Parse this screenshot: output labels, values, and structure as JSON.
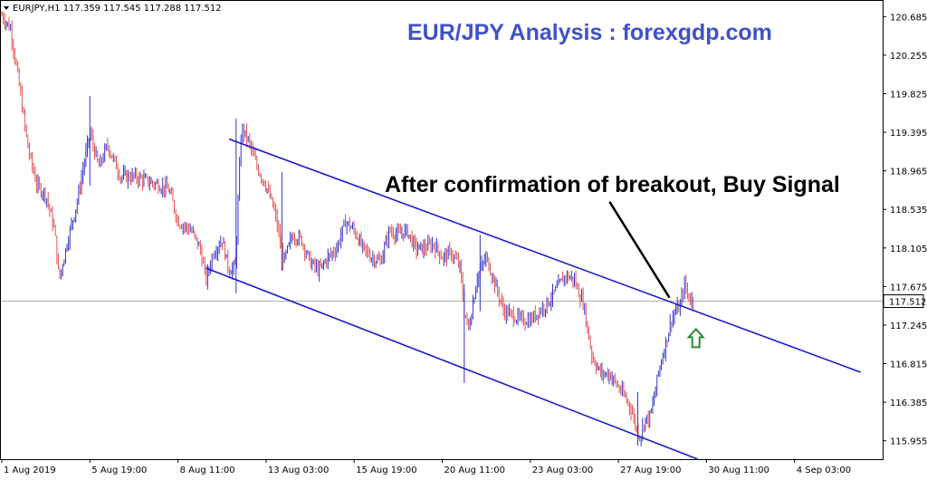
{
  "header": {
    "symbol_info": "EURJPY,H1  117.359 117.545 117.288 117.512"
  },
  "chart_data": {
    "type": "candlestick",
    "title": "EUR/JPY Analysis : forexgdp.com",
    "annotation": "After confirmation of breakout, Buy Signal",
    "ylim": [
      115.75,
      120.85
    ],
    "y_ticks": [
      "120.685",
      "120.255",
      "119.825",
      "119.395",
      "118.965",
      "118.535",
      "118.105",
      "117.675",
      "117.245",
      "116.815",
      "116.385",
      "115.955"
    ],
    "y_tick_values": [
      120.685,
      120.255,
      119.825,
      119.395,
      118.965,
      118.535,
      118.105,
      117.675,
      117.245,
      116.815,
      116.385,
      115.955
    ],
    "x_ticks": [
      "1 Aug 2019",
      "5 Aug 19:00",
      "8 Aug 11:00",
      "13 Aug 03:00",
      "15 Aug 19:00",
      "20 Aug 11:00",
      "23 Aug 03:00",
      "27 Aug 19:00",
      "30 Aug 11:00",
      "4 Sep 03:00"
    ],
    "x_tick_index": [
      0,
      0.1,
      0.2,
      0.3,
      0.4,
      0.5,
      0.6,
      0.7,
      0.8,
      0.9
    ],
    "current_price": "117.512",
    "current_price_value": 117.512,
    "grid": false,
    "colors": {
      "bull": "#3333cc",
      "bear": "#e05050",
      "channel": "#1a1acc",
      "price_line": "#b0b0b0",
      "arrow": "#2e8b2e",
      "title": "#3f51c8"
    },
    "price_path": [
      [
        0.0,
        120.7
      ],
      [
        0.01,
        120.55
      ],
      [
        0.02,
        119.9
      ],
      [
        0.03,
        119.2
      ],
      [
        0.04,
        118.8
      ],
      [
        0.05,
        118.7
      ],
      [
        0.06,
        118.3
      ],
      [
        0.065,
        117.75
      ],
      [
        0.075,
        118.2
      ],
      [
        0.085,
        118.6
      ],
      [
        0.1,
        119.4
      ],
      [
        0.11,
        119.0
      ],
      [
        0.12,
        119.25
      ],
      [
        0.135,
        118.9
      ],
      [
        0.15,
        118.9
      ],
      [
        0.165,
        118.85
      ],
      [
        0.18,
        118.8
      ],
      [
        0.19,
        118.75
      ],
      [
        0.2,
        118.4
      ],
      [
        0.215,
        118.3
      ],
      [
        0.225,
        118.1
      ],
      [
        0.232,
        117.75
      ],
      [
        0.24,
        118.05
      ],
      [
        0.25,
        118.2
      ],
      [
        0.258,
        117.85
      ],
      [
        0.265,
        117.9
      ],
      [
        0.272,
        119.45
      ],
      [
        0.28,
        119.3
      ],
      [
        0.29,
        119.0
      ],
      [
        0.3,
        118.8
      ],
      [
        0.31,
        118.5
      ],
      [
        0.32,
        117.95
      ],
      [
        0.33,
        118.25
      ],
      [
        0.34,
        118.2
      ],
      [
        0.35,
        117.95
      ],
      [
        0.36,
        117.85
      ],
      [
        0.37,
        118.0
      ],
      [
        0.38,
        118.1
      ],
      [
        0.39,
        118.4
      ],
      [
        0.4,
        118.3
      ],
      [
        0.41,
        118.1
      ],
      [
        0.42,
        118.0
      ],
      [
        0.43,
        117.95
      ],
      [
        0.44,
        118.3
      ],
      [
        0.45,
        118.25
      ],
      [
        0.46,
        118.3
      ],
      [
        0.47,
        118.1
      ],
      [
        0.48,
        118.1
      ],
      [
        0.49,
        118.15
      ],
      [
        0.5,
        118.0
      ],
      [
        0.51,
        118.05
      ],
      [
        0.52,
        117.9
      ],
      [
        0.525,
        117.4
      ],
      [
        0.53,
        117.2
      ],
      [
        0.535,
        117.5
      ],
      [
        0.54,
        117.8
      ],
      [
        0.55,
        118.0
      ],
      [
        0.56,
        117.7
      ],
      [
        0.57,
        117.4
      ],
      [
        0.58,
        117.35
      ],
      [
        0.59,
        117.3
      ],
      [
        0.6,
        117.3
      ],
      [
        0.61,
        117.4
      ],
      [
        0.62,
        117.5
      ],
      [
        0.63,
        117.65
      ],
      [
        0.64,
        117.8
      ],
      [
        0.65,
        117.75
      ],
      [
        0.655,
        117.6
      ],
      [
        0.66,
        117.5
      ],
      [
        0.665,
        117.2
      ],
      [
        0.67,
        116.9
      ],
      [
        0.68,
        116.7
      ],
      [
        0.69,
        116.7
      ],
      [
        0.7,
        116.55
      ],
      [
        0.71,
        116.4
      ],
      [
        0.715,
        116.3
      ],
      [
        0.72,
        116.1
      ],
      [
        0.725,
        116.0
      ],
      [
        0.73,
        116.2
      ],
      [
        0.735,
        116.2
      ],
      [
        0.74,
        116.4
      ],
      [
        0.745,
        116.7
      ],
      [
        0.75,
        116.9
      ],
      [
        0.755,
        117.1
      ],
      [
        0.76,
        117.3
      ],
      [
        0.765,
        117.4
      ],
      [
        0.77,
        117.45
      ],
      [
        0.775,
        117.7
      ],
      [
        0.78,
        117.55
      ],
      [
        0.785,
        117.51
      ]
    ],
    "spikes": [
      [
        0.1,
        118.8,
        119.8
      ],
      [
        0.266,
        117.6,
        119.55
      ],
      [
        0.318,
        117.85,
        118.95
      ],
      [
        0.525,
        116.6,
        117.7
      ],
      [
        0.543,
        117.4,
        118.25
      ],
      [
        0.722,
        115.9,
        116.5
      ]
    ],
    "channel_upper": [
      [
        0.258,
        119.32
      ],
      [
        0.975,
        116.72
      ]
    ],
    "channel_lower": [
      [
        0.232,
        117.88
      ],
      [
        0.79,
        115.75
      ]
    ],
    "arrow_pointer": [
      [
        0.69,
        118.62
      ],
      [
        0.758,
        117.55
      ]
    ],
    "buy_arrow": [
      0.788,
      117.1
    ]
  }
}
